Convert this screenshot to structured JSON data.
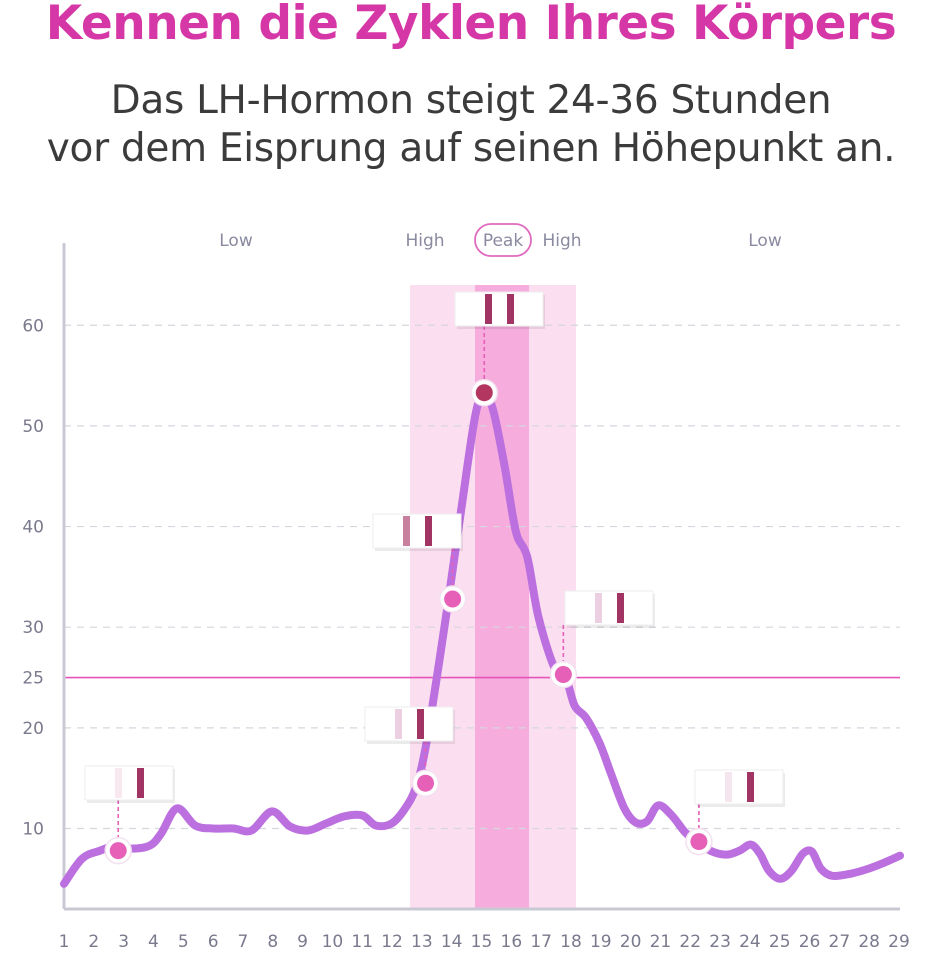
{
  "header": {
    "title": "Kennen die Zyklen Ihres Körpers",
    "subtitle_line1": "Das LH-Hormon steigt 24-36 Stunden",
    "subtitle_line2": "vor dem Eisprung auf seinen Höhepunkt an."
  },
  "chart_data": {
    "type": "line",
    "title": "Kennen die Zyklen Ihres Körpers",
    "xlabel": "",
    "ylabel": "",
    "x_ticks": [
      1,
      2,
      3,
      4,
      5,
      6,
      7,
      8,
      9,
      10,
      11,
      12,
      13,
      14,
      15,
      16,
      17,
      18,
      19,
      20,
      21,
      22,
      23,
      24,
      25,
      26,
      27,
      28,
      29
    ],
    "y_ticks": [
      10,
      20,
      25,
      30,
      40,
      50,
      60
    ],
    "ylim": [
      2,
      64
    ],
    "grid": true,
    "zones": [
      {
        "label": "Low",
        "from": 1,
        "to": 14.3
      },
      {
        "label": "High",
        "from": 14.3,
        "to": 16.5
      },
      {
        "label": "Peak",
        "from": 16.5,
        "to": 17.9
      },
      {
        "label": "High",
        "from": 17.9,
        "to": 19.3
      },
      {
        "label": "Low",
        "from": 19.3,
        "to": 29
      }
    ],
    "threshold": {
      "value": 25,
      "color": "#e653b8"
    },
    "series": [
      {
        "color": "#bc6fdf",
        "points": [
          [
            1,
            4.5
          ],
          [
            1.8,
            7
          ],
          [
            2.6,
            7.8
          ],
          [
            3.3,
            8.3
          ],
          [
            4,
            8
          ],
          [
            4.8,
            8.3
          ],
          [
            5.3,
            9.5
          ],
          [
            6.0,
            12.0
          ],
          [
            6.8,
            10.3
          ],
          [
            7.6,
            10
          ],
          [
            8.5,
            10
          ],
          [
            9.3,
            9.8
          ],
          [
            10.2,
            11.7
          ],
          [
            11,
            10.2
          ],
          [
            11.8,
            9.8
          ],
          [
            12.6,
            10.5
          ],
          [
            13.4,
            11.2
          ],
          [
            14.2,
            11.3
          ],
          [
            14.8,
            10.3
          ],
          [
            15.5,
            10.5
          ],
          [
            16.1,
            12
          ],
          [
            16.6,
            14.2
          ],
          [
            17.0,
            18
          ],
          [
            17.5,
            25
          ],
          [
            18.0,
            32.5
          ],
          [
            18.6,
            42
          ],
          [
            19.2,
            51
          ],
          [
            19.6,
            53.3
          ],
          [
            20.0,
            51.5
          ],
          [
            20.5,
            46
          ],
          [
            21.0,
            39.5
          ],
          [
            21.5,
            37
          ],
          [
            22.0,
            31
          ],
          [
            22.7,
            26
          ],
          [
            23.2,
            25
          ],
          [
            23.6,
            22.2
          ],
          [
            24.1,
            21
          ],
          [
            24.7,
            18.5
          ],
          [
            25.2,
            15.5
          ],
          [
            25.8,
            12
          ],
          [
            26.3,
            10.6
          ],
          [
            26.8,
            10.7
          ],
          [
            27.3,
            12.3
          ],
          [
            27.9,
            11.3
          ],
          [
            28.5,
            9.6
          ],
          [
            29.0,
            8.8
          ],
          [
            29.6,
            7.8
          ],
          [
            30.3,
            7.4
          ],
          [
            30.9,
            7.8
          ],
          [
            31.4,
            8.4
          ],
          [
            31.8,
            7.5
          ],
          [
            32.2,
            5.8
          ],
          [
            32.7,
            5
          ],
          [
            33.2,
            5.8
          ],
          [
            33.7,
            7.5
          ],
          [
            34.1,
            7.7
          ],
          [
            34.5,
            6
          ],
          [
            35.0,
            5.3
          ],
          [
            35.8,
            5.5
          ],
          [
            36.6,
            6
          ],
          [
            37.3,
            6.6
          ],
          [
            38.0,
            7.3
          ]
        ]
      }
    ],
    "markers": [
      {
        "x": 3.4,
        "y": 7.8,
        "label": "Low",
        "strip": {
          "test_line": "#f8e9f1",
          "control_line": "#a23464"
        }
      },
      {
        "x": 17.0,
        "y": 14.5,
        "label": "High",
        "strip": {
          "test_line": "#eccfe0",
          "control_line": "#a23464"
        }
      },
      {
        "x": 18.2,
        "y": 32.8,
        "label": "High",
        "strip": {
          "test_line": "#c9809f",
          "control_line": "#a23464"
        }
      },
      {
        "x": 19.6,
        "y": 53.3,
        "label": "Peak",
        "strip": {
          "test_line": "#a23464",
          "control_line": "#a23464"
        }
      },
      {
        "x": 23.1,
        "y": 25.3,
        "label": "High",
        "strip": {
          "test_line": "#eccfe0",
          "control_line": "#a23464"
        }
      },
      {
        "x": 29.1,
        "y": 8.7,
        "label": "Low",
        "strip": {
          "test_line": "#f4e5ee",
          "control_line": "#a23464"
        }
      }
    ]
  },
  "colors": {
    "title": "#d637a6",
    "line": "#bc6fdf",
    "high_band": "#fbd8ef",
    "peak_band": "#f4a3d9",
    "dot": "#e660b8",
    "peak_dot": "#b2365f",
    "axis": "#c9c9d4",
    "grid": "#d6d6de"
  }
}
